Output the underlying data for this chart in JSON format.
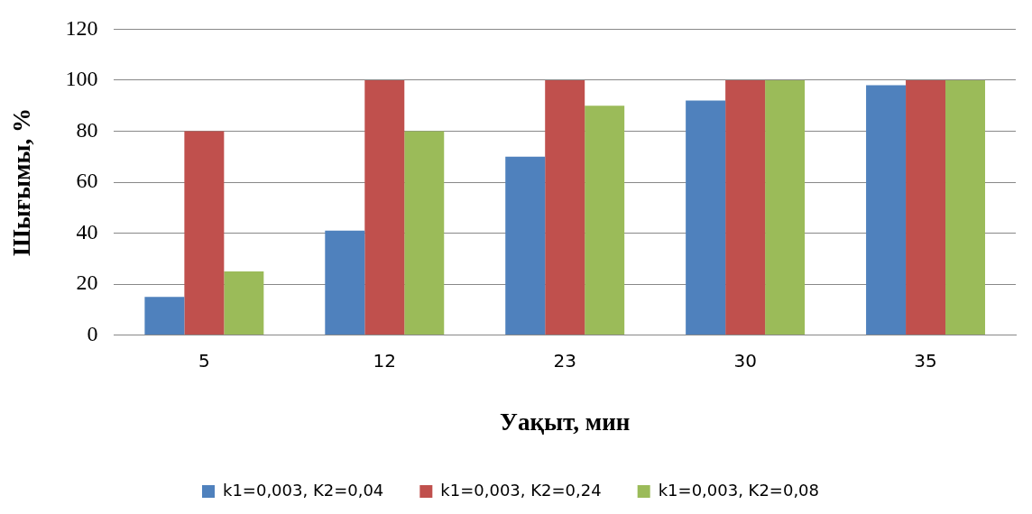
{
  "chart_data": {
    "type": "bar",
    "xlabel": "Уақыт, мин",
    "ylabel": "Шығымы, %",
    "categories": [
      "5",
      "12",
      "23",
      "30",
      "35"
    ],
    "series": [
      {
        "name": "k1=0,003, K2=0,04",
        "color": "#4f81bd",
        "values": [
          15,
          41,
          70,
          92,
          98
        ]
      },
      {
        "name": "k1=0,003, K2=0,24",
        "color": "#c0504d",
        "values": [
          80,
          100,
          100,
          100,
          100
        ]
      },
      {
        "name": "k1=0,003, K2=0,08",
        "color": "#9bbb59",
        "values": [
          25,
          80,
          90,
          100,
          100
        ]
      }
    ],
    "ylim": [
      0,
      120
    ],
    "yticks": [
      0,
      20,
      40,
      60,
      80,
      100,
      120
    ],
    "grid": "y",
    "legend": "bottom"
  }
}
